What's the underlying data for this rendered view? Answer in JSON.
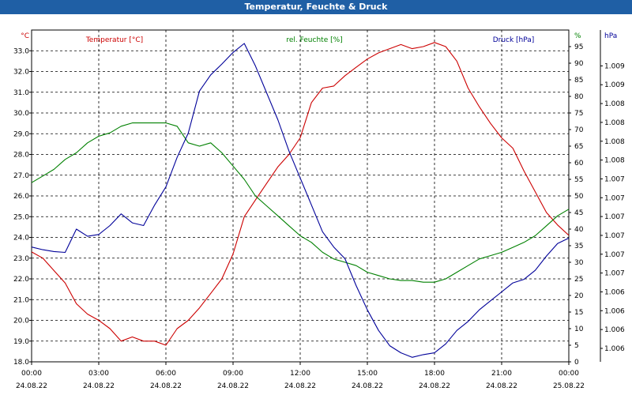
{
  "window": {
    "title": "Temperatur, Feuchte & Druck"
  },
  "chart_data": {
    "type": "line",
    "title": "Temperatur, Feuchte & Druck",
    "legend": "top",
    "grid": true,
    "colors": {
      "temperature": "#cc0000",
      "humidity": "#008000",
      "pressure": "#000099",
      "title_bar": "#1f5fa5"
    },
    "x_range": [
      "24.08.22 00:00",
      "25.08.22 00:00"
    ],
    "x_ticks": [
      {
        "time": "00:00",
        "date": "24.08.22"
      },
      {
        "time": "03:00",
        "date": "24.08.22"
      },
      {
        "time": "06:00",
        "date": "24.08.22"
      },
      {
        "time": "09:00",
        "date": "24.08.22"
      },
      {
        "time": "12:00",
        "date": "24.08.22"
      },
      {
        "time": "15:00",
        "date": "24.08.22"
      },
      {
        "time": "18:00",
        "date": "24.08.22"
      },
      {
        "time": "21:00",
        "date": "24.08.22"
      },
      {
        "time": "00:00",
        "date": "25.08.22"
      }
    ],
    "axes": {
      "temperature": {
        "unit": "°C",
        "ylim": [
          18.0,
          34.0
        ],
        "ticks": [
          "18.0",
          "19.0",
          "20.0",
          "21.0",
          "22.0",
          "23.0",
          "24.0",
          "25.0",
          "26.0",
          "27.0",
          "28.0",
          "29.0",
          "30.0",
          "31.0",
          "32.0",
          "33.0"
        ]
      },
      "humidity": {
        "unit": "%",
        "ylim": [
          0,
          100
        ],
        "ticks": [
          "0",
          "5",
          "10",
          "15",
          "20",
          "25",
          "30",
          "35",
          "40",
          "45",
          "50",
          "55",
          "60",
          "65",
          "70",
          "75",
          "80",
          "85",
          "90",
          "95"
        ]
      },
      "pressure": {
        "unit": "hPa",
        "ylim": [
          1.0058,
          1.0095
        ],
        "ticks": [
          "1.006",
          "1.006",
          "1.006",
          "1.006",
          "1.007",
          "1.007",
          "1.007",
          "1.007",
          "1.007",
          "1.007",
          "1.008",
          "1.008",
          "1.008",
          "1.008",
          "1.009",
          "1.009"
        ]
      }
    },
    "series": [
      {
        "name": "Temperatur [°C]",
        "axis": "temperature",
        "x": [
          0,
          0.5,
          1,
          1.5,
          2,
          2.5,
          3,
          3.5,
          4,
          4.5,
          5,
          5.5,
          6,
          6.5,
          7,
          7.5,
          8,
          8.5,
          9,
          9.5,
          10,
          10.5,
          11,
          11.5,
          12,
          12.5,
          13,
          13.5,
          14,
          14.5,
          15,
          15.5,
          16,
          16.5,
          17,
          17.5,
          18,
          18.5,
          19,
          19.5,
          20,
          20.5,
          21,
          21.5,
          22,
          22.5,
          23,
          23.5,
          24
        ],
        "values": [
          23.3,
          23.0,
          22.4,
          21.8,
          20.8,
          20.3,
          20.0,
          19.6,
          19.0,
          19.2,
          19.0,
          19.0,
          18.8,
          19.6,
          20.0,
          20.6,
          21.3,
          22.0,
          23.2,
          25.0,
          25.8,
          26.6,
          27.4,
          28.0,
          28.8,
          30.5,
          31.2,
          31.3,
          31.8,
          32.2,
          32.6,
          32.9,
          33.1,
          33.3,
          33.1,
          33.2,
          33.4,
          33.2,
          32.5,
          31.2,
          30.3,
          29.5,
          28.8,
          28.3,
          27.2,
          26.2,
          25.2,
          24.6,
          24.1
        ]
      },
      {
        "name": "rel. Feuchte [%]",
        "axis": "humidity",
        "x": [
          0,
          0.5,
          1,
          1.5,
          2,
          2.5,
          3,
          3.5,
          4,
          4.5,
          5,
          5.5,
          6,
          6.5,
          7,
          7.5,
          8,
          8.5,
          9,
          9.5,
          10,
          10.5,
          11,
          11.5,
          12,
          12.5,
          13,
          13.5,
          14,
          14.5,
          15,
          15.5,
          16,
          16.5,
          17,
          17.5,
          18,
          18.5,
          19,
          19.5,
          20,
          20.5,
          21,
          21.5,
          22,
          22.5,
          23,
          23.5,
          24
        ],
        "values": [
          54,
          56,
          58,
          61,
          63,
          66,
          68,
          69,
          71,
          72,
          72,
          72,
          72,
          71,
          66,
          65,
          66,
          63,
          59,
          55,
          50,
          47,
          44,
          41,
          38,
          36,
          33,
          31,
          30,
          29,
          27,
          26,
          25,
          24.5,
          24.5,
          24,
          24,
          25,
          27,
          29,
          31,
          32,
          33,
          34.5,
          36,
          38,
          41,
          44,
          46
        ]
      },
      {
        "name": "Druck [hPa]",
        "axis": "pressure",
        "x": [
          0,
          0.5,
          1,
          1.5,
          2,
          2.5,
          3,
          3.5,
          4,
          4.5,
          5,
          5.5,
          6,
          6.5,
          7,
          7.5,
          8,
          8.5,
          9,
          9.5,
          10,
          10.5,
          11,
          11.5,
          12,
          12.5,
          13,
          13.5,
          14,
          14.5,
          15,
          15.5,
          16,
          16.5,
          17,
          17.5,
          18,
          18.5,
          19,
          19.5,
          20,
          20.5,
          21,
          21.5,
          22,
          22.5,
          23,
          23.5,
          24
        ],
        "values": [
          1.00708,
          1.00705,
          1.00703,
          1.00702,
          1.00728,
          1.0072,
          1.00722,
          1.00732,
          1.00745,
          1.00735,
          1.00732,
          1.00755,
          1.00775,
          1.00808,
          1.00835,
          1.00882,
          1.009,
          1.00912,
          1.00925,
          1.00935,
          1.0091,
          1.0088,
          1.0085,
          1.00815,
          1.00785,
          1.00755,
          1.00725,
          1.00708,
          1.00695,
          1.00665,
          1.00638,
          1.00615,
          1.00598,
          1.0059,
          1.00585,
          1.00588,
          1.0059,
          1.006,
          1.00615,
          1.00625,
          1.00638,
          1.00648,
          1.00658,
          1.00668,
          1.00672,
          1.00682,
          1.00698,
          1.00712,
          1.00718
        ]
      }
    ]
  }
}
